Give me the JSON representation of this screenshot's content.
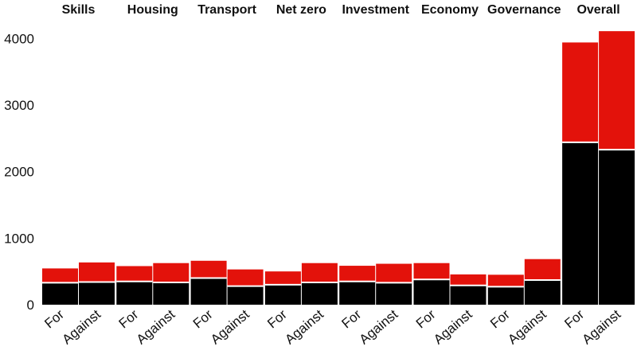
{
  "chart_data": {
    "type": "bar",
    "stacked": true,
    "panels": [
      {
        "title": "Skills",
        "categories": [
          "For",
          "Against"
        ],
        "bottom": [
          330,
          340
        ],
        "top": [
          215,
          295
        ]
      },
      {
        "title": "Housing",
        "categories": [
          "For",
          "Against"
        ],
        "bottom": [
          350,
          335
        ],
        "top": [
          230,
          290
        ]
      },
      {
        "title": "Transport",
        "categories": [
          "For",
          "Against"
        ],
        "bottom": [
          400,
          280
        ],
        "top": [
          260,
          250
        ]
      },
      {
        "title": "Net zero",
        "categories": [
          "For",
          "Against"
        ],
        "bottom": [
          300,
          335
        ],
        "top": [
          200,
          290
        ]
      },
      {
        "title": "Investment",
        "categories": [
          "For",
          "Against"
        ],
        "bottom": [
          350,
          330
        ],
        "top": [
          235,
          285
        ]
      },
      {
        "title": "Economy",
        "categories": [
          "For",
          "Against"
        ],
        "bottom": [
          380,
          290
        ],
        "top": [
          245,
          165
        ]
      },
      {
        "title": "Governance",
        "categories": [
          "For",
          "Against"
        ],
        "bottom": [
          270,
          370
        ],
        "top": [
          180,
          315
        ]
      },
      {
        "title": "Overall",
        "categories": [
          "For",
          "Against"
        ],
        "bottom": [
          2440,
          2330
        ],
        "top": [
          1500,
          1780
        ]
      }
    ],
    "ylim": [
      0,
      4100
    ],
    "yticks": [
      0,
      1000,
      2000,
      3000,
      4000
    ],
    "colors": {
      "bottom": "#000000",
      "top": "#e3120b"
    },
    "grid": false
  }
}
